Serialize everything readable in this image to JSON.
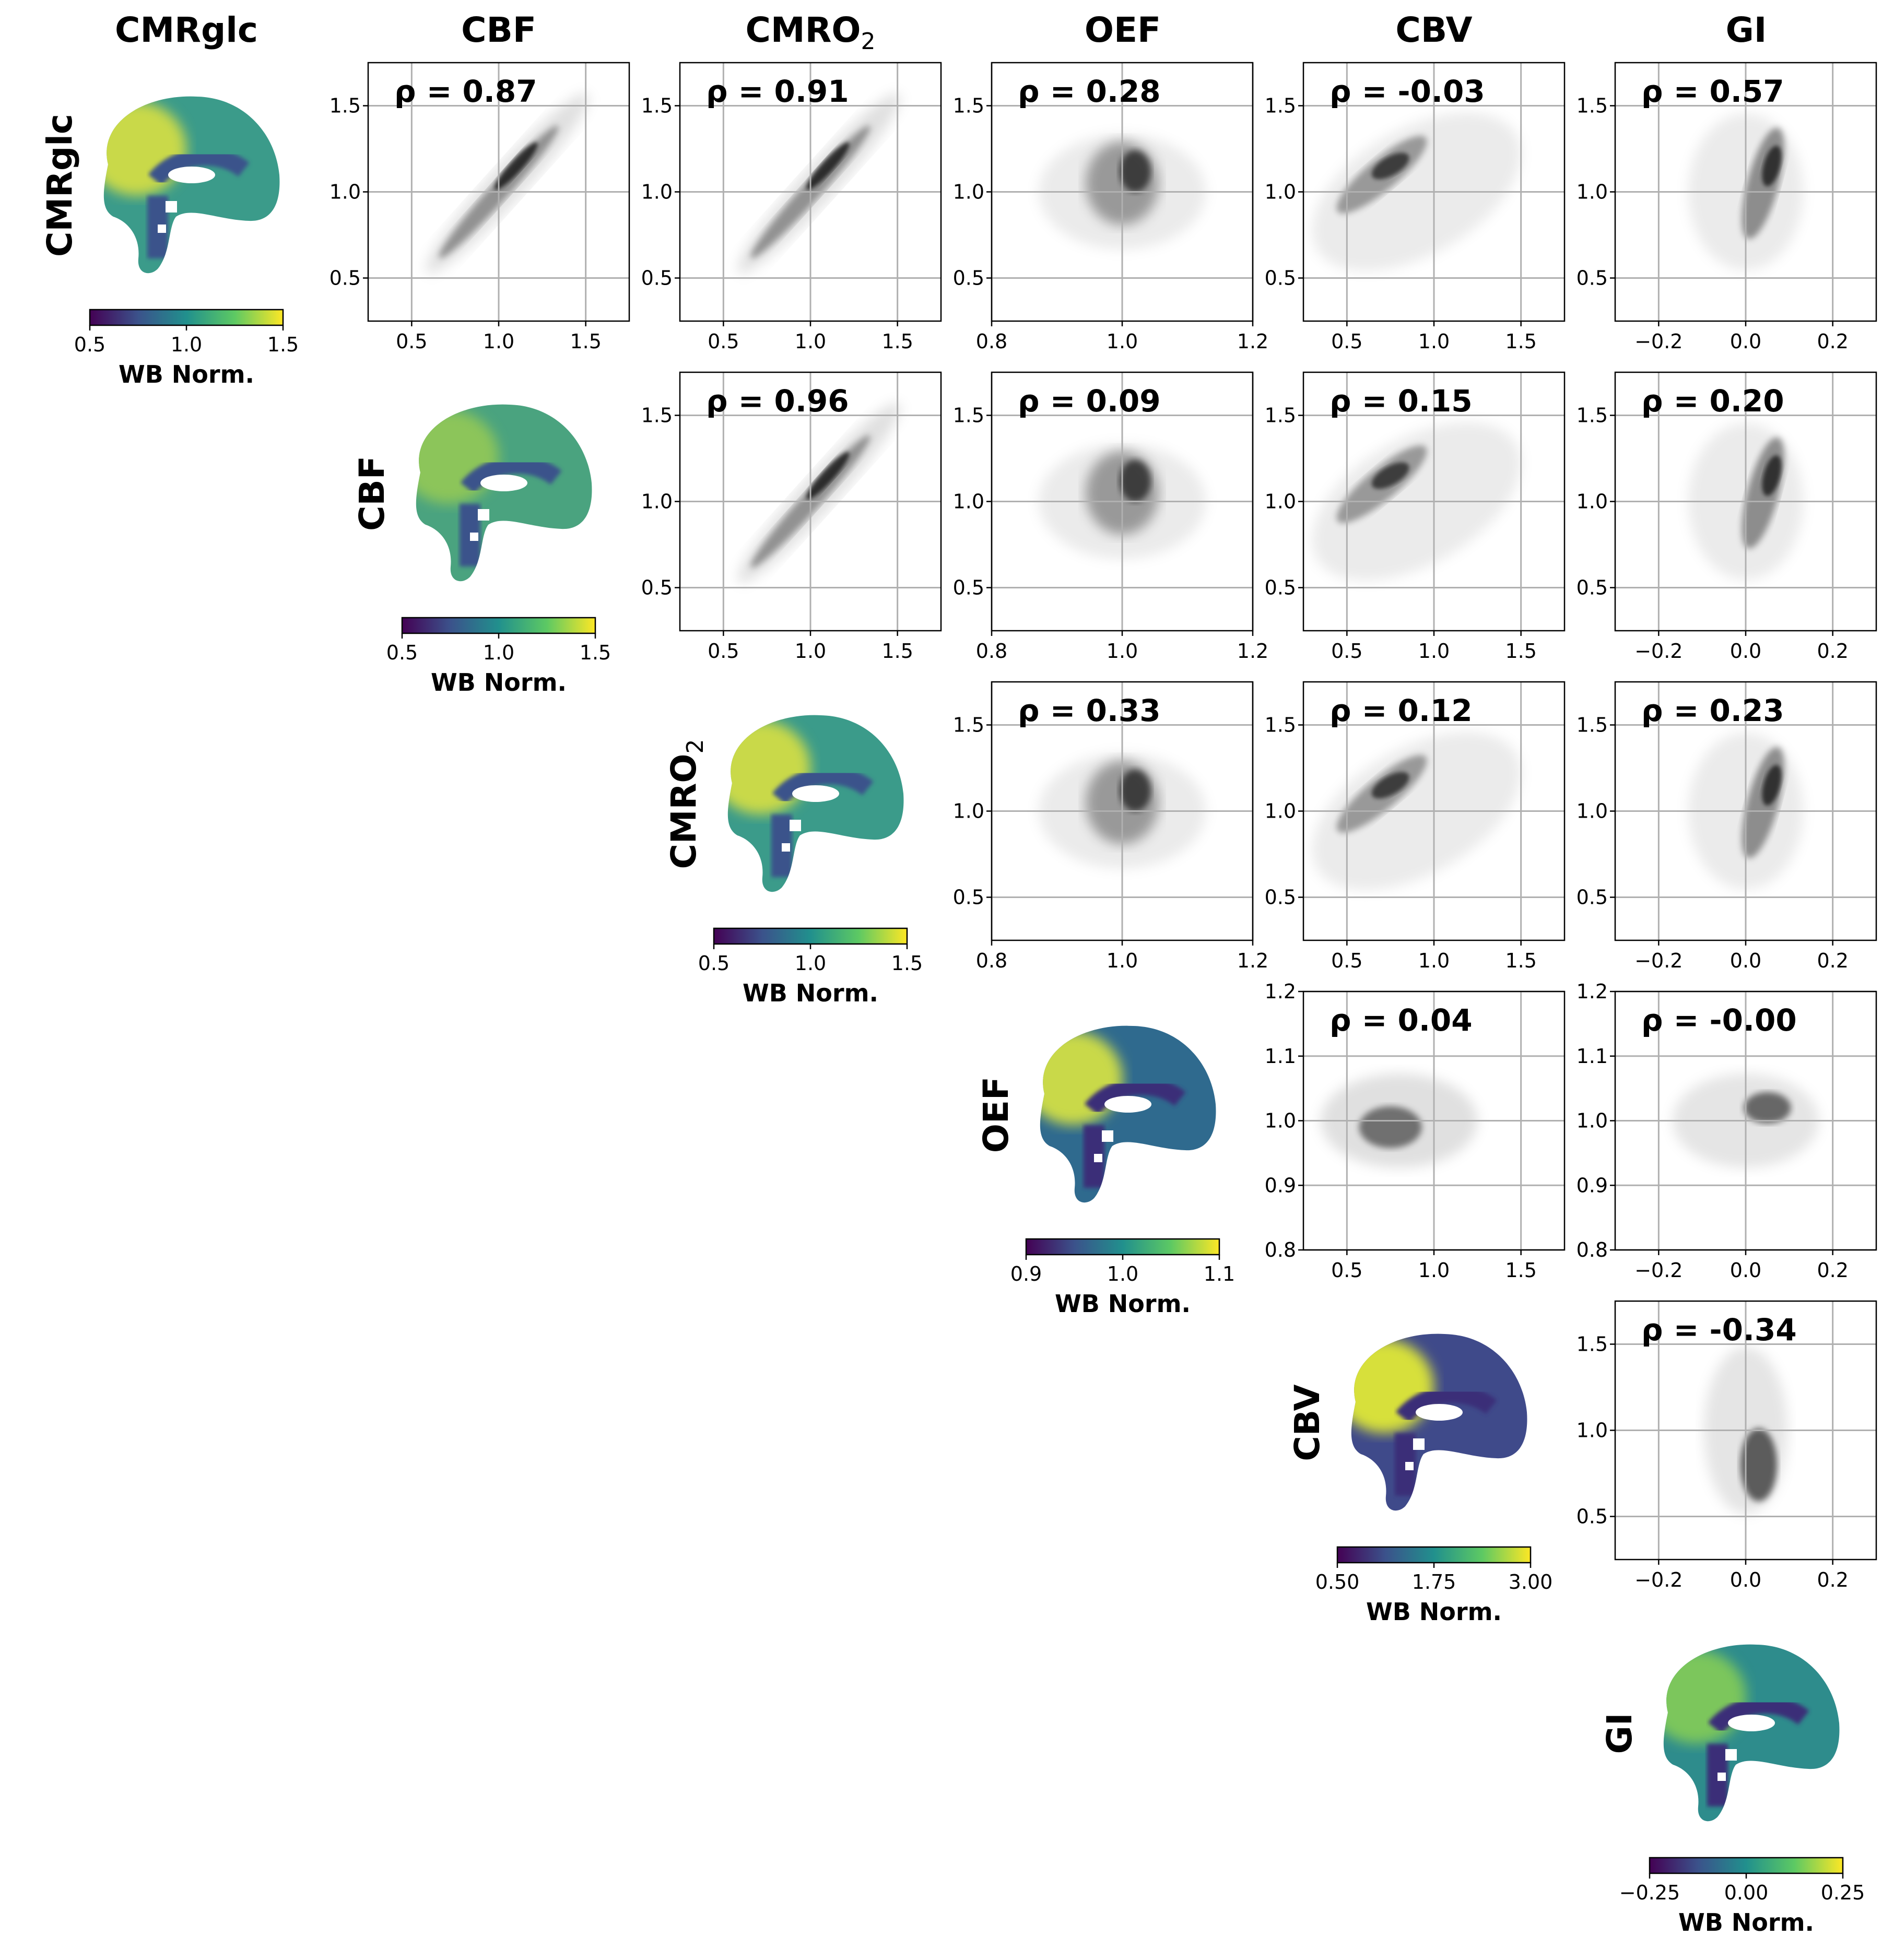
{
  "figure": {
    "variables": [
      {
        "key": "cmrglc",
        "title": "CMRglc",
        "title_sub": ""
      },
      {
        "key": "cbf",
        "title": "CBF",
        "title_sub": ""
      },
      {
        "key": "cmro2",
        "title": "CMRO",
        "title_sub": "2"
      },
      {
        "key": "oef",
        "title": "OEF",
        "title_sub": ""
      },
      {
        "key": "cbv",
        "title": "CBV",
        "title_sub": ""
      },
      {
        "key": "gi",
        "title": "GI",
        "title_sub": ""
      }
    ],
    "colorbar_label": "WB Norm.",
    "colors": {
      "viridis": [
        "#440154",
        "#3b528b",
        "#21908d",
        "#5dc963",
        "#fde725"
      ],
      "density": [
        "#ffffff",
        "#000000"
      ],
      "grid": "#b0b0b0"
    }
  },
  "colorbars": [
    {
      "variable": "cmrglc",
      "range": [
        0.5,
        1.5
      ],
      "ticks": [
        "0.5",
        "1.0",
        "1.5"
      ]
    },
    {
      "variable": "cbf",
      "range": [
        0.5,
        1.5
      ],
      "ticks": [
        "0.5",
        "1.0",
        "1.5"
      ]
    },
    {
      "variable": "cmro2",
      "range": [
        0.5,
        1.5
      ],
      "ticks": [
        "0.5",
        "1.0",
        "1.5"
      ]
    },
    {
      "variable": "oef",
      "range": [
        0.9,
        1.1
      ],
      "ticks": [
        "0.9",
        "1.0",
        "1.1"
      ]
    },
    {
      "variable": "cbv",
      "range": [
        0.5,
        3.0
      ],
      "ticks": [
        "0.50",
        "1.75",
        "3.00"
      ]
    },
    {
      "variable": "gi",
      "range": [
        -0.25,
        0.25
      ],
      "ticks": [
        "−0.25",
        "0.00",
        "0.25"
      ]
    }
  ],
  "chart_data": [
    {
      "type": "heatmap",
      "row": 0,
      "col": 1,
      "rho": "ρ = 0.87",
      "xlim": [
        0.25,
        1.75
      ],
      "ylim": [
        0.25,
        1.75
      ],
      "xticks": [
        0.5,
        1.0,
        1.5
      ],
      "yticks": [
        0.5,
        1.0,
        1.5
      ],
      "xticklabels": [
        "0.5",
        "1.0",
        "1.5"
      ],
      "yticklabels": [
        "0.5",
        "1.0",
        "1.5"
      ]
    },
    {
      "type": "heatmap",
      "row": 0,
      "col": 2,
      "rho": "ρ = 0.91",
      "xlim": [
        0.25,
        1.75
      ],
      "ylim": [
        0.25,
        1.75
      ],
      "xticks": [
        0.5,
        1.0,
        1.5
      ],
      "yticks": [
        0.5,
        1.0,
        1.5
      ],
      "xticklabels": [
        "0.5",
        "1.0",
        "1.5"
      ],
      "yticklabels": [
        "0.5",
        "1.0",
        "1.5"
      ]
    },
    {
      "type": "heatmap",
      "row": 0,
      "col": 3,
      "rho": "ρ = 0.28",
      "xlim": [
        0.8,
        1.2
      ],
      "ylim": [
        0.25,
        1.75
      ],
      "xticks": [
        0.8,
        1.0,
        1.2
      ],
      "yticks": [
        0.5,
        1.0,
        1.5
      ],
      "xticklabels": [
        "0.8",
        "1.0",
        "1.2"
      ],
      "yticklabels": [
        "0.5",
        "1.0",
        "1.5"
      ]
    },
    {
      "type": "heatmap",
      "row": 0,
      "col": 4,
      "rho": "ρ = -0.03",
      "xlim": [
        0.25,
        1.75
      ],
      "ylim": [
        0.25,
        1.75
      ],
      "xticks": [
        0.5,
        1.0,
        1.5
      ],
      "yticks": [
        0.5,
        1.0,
        1.5
      ],
      "xticklabels": [
        "0.5",
        "1.0",
        "1.5"
      ],
      "yticklabels": [
        "0.5",
        "1.0",
        "1.5"
      ]
    },
    {
      "type": "heatmap",
      "row": 0,
      "col": 5,
      "rho": "ρ = 0.57",
      "xlim": [
        -0.3,
        0.3
      ],
      "ylim": [
        0.25,
        1.75
      ],
      "xticks": [
        -0.2,
        0.0,
        0.2
      ],
      "yticks": [
        0.5,
        1.0,
        1.5
      ],
      "xticklabels": [
        "−0.2",
        "0.0",
        "0.2"
      ],
      "yticklabels": [
        "0.5",
        "1.0",
        "1.5"
      ]
    },
    {
      "type": "heatmap",
      "row": 1,
      "col": 2,
      "rho": "ρ = 0.96",
      "xlim": [
        0.25,
        1.75
      ],
      "ylim": [
        0.25,
        1.75
      ],
      "xticks": [
        0.5,
        1.0,
        1.5
      ],
      "yticks": [
        0.5,
        1.0,
        1.5
      ],
      "xticklabels": [
        "0.5",
        "1.0",
        "1.5"
      ],
      "yticklabels": [
        "0.5",
        "1.0",
        "1.5"
      ]
    },
    {
      "type": "heatmap",
      "row": 1,
      "col": 3,
      "rho": "ρ = 0.09",
      "xlim": [
        0.8,
        1.2
      ],
      "ylim": [
        0.25,
        1.75
      ],
      "xticks": [
        0.8,
        1.0,
        1.2
      ],
      "yticks": [
        0.5,
        1.0,
        1.5
      ],
      "xticklabels": [
        "0.8",
        "1.0",
        "1.2"
      ],
      "yticklabels": [
        "0.5",
        "1.0",
        "1.5"
      ]
    },
    {
      "type": "heatmap",
      "row": 1,
      "col": 4,
      "rho": "ρ = 0.15",
      "xlim": [
        0.25,
        1.75
      ],
      "ylim": [
        0.25,
        1.75
      ],
      "xticks": [
        0.5,
        1.0,
        1.5
      ],
      "yticks": [
        0.5,
        1.0,
        1.5
      ],
      "xticklabels": [
        "0.5",
        "1.0",
        "1.5"
      ],
      "yticklabels": [
        "0.5",
        "1.0",
        "1.5"
      ]
    },
    {
      "type": "heatmap",
      "row": 1,
      "col": 5,
      "rho": "ρ = 0.20",
      "xlim": [
        -0.3,
        0.3
      ],
      "ylim": [
        0.25,
        1.75
      ],
      "xticks": [
        -0.2,
        0.0,
        0.2
      ],
      "yticks": [
        0.5,
        1.0,
        1.5
      ],
      "xticklabels": [
        "−0.2",
        "0.0",
        "0.2"
      ],
      "yticklabels": [
        "0.5",
        "1.0",
        "1.5"
      ]
    },
    {
      "type": "heatmap",
      "row": 2,
      "col": 3,
      "rho": "ρ = 0.33",
      "xlim": [
        0.8,
        1.2
      ],
      "ylim": [
        0.25,
        1.75
      ],
      "xticks": [
        0.8,
        1.0,
        1.2
      ],
      "yticks": [
        0.5,
        1.0,
        1.5
      ],
      "xticklabels": [
        "0.8",
        "1.0",
        "1.2"
      ],
      "yticklabels": [
        "0.5",
        "1.0",
        "1.5"
      ]
    },
    {
      "type": "heatmap",
      "row": 2,
      "col": 4,
      "rho": "ρ = 0.12",
      "xlim": [
        0.25,
        1.75
      ],
      "ylim": [
        0.25,
        1.75
      ],
      "xticks": [
        0.5,
        1.0,
        1.5
      ],
      "yticks": [
        0.5,
        1.0,
        1.5
      ],
      "xticklabels": [
        "0.5",
        "1.0",
        "1.5"
      ],
      "yticklabels": [
        "0.5",
        "1.0",
        "1.5"
      ]
    },
    {
      "type": "heatmap",
      "row": 2,
      "col": 5,
      "rho": "ρ = 0.23",
      "xlim": [
        -0.3,
        0.3
      ],
      "ylim": [
        0.25,
        1.75
      ],
      "xticks": [
        -0.2,
        0.0,
        0.2
      ],
      "yticks": [
        0.5,
        1.0,
        1.5
      ],
      "xticklabels": [
        "−0.2",
        "0.0",
        "0.2"
      ],
      "yticklabels": [
        "0.5",
        "1.0",
        "1.5"
      ]
    },
    {
      "type": "heatmap",
      "row": 3,
      "col": 4,
      "rho": "ρ = 0.04",
      "xlim": [
        0.25,
        1.75
      ],
      "ylim": [
        0.8,
        1.2
      ],
      "xticks": [
        0.5,
        1.0,
        1.5
      ],
      "yticks": [
        0.8,
        0.9,
        1.0,
        1.1,
        1.2
      ],
      "xticklabels": [
        "0.5",
        "1.0",
        "1.5"
      ],
      "yticklabels": [
        "0.8",
        "0.9",
        "1.0",
        "1.1",
        "1.2"
      ]
    },
    {
      "type": "heatmap",
      "row": 3,
      "col": 5,
      "rho": "ρ = -0.00",
      "xlim": [
        -0.3,
        0.3
      ],
      "ylim": [
        0.8,
        1.2
      ],
      "xticks": [
        -0.2,
        0.0,
        0.2
      ],
      "yticks": [
        0.8,
        0.9,
        1.0,
        1.1,
        1.2
      ],
      "xticklabels": [
        "−0.2",
        "0.0",
        "0.2"
      ],
      "yticklabels": [
        "0.8",
        "0.9",
        "1.0",
        "1.1",
        "1.2"
      ]
    },
    {
      "type": "heatmap",
      "row": 4,
      "col": 5,
      "rho": "ρ = -0.34",
      "xlim": [
        -0.3,
        0.3
      ],
      "ylim": [
        0.25,
        1.75
      ],
      "xticks": [
        -0.2,
        0.0,
        0.2
      ],
      "yticks": [
        0.5,
        1.0,
        1.5
      ],
      "xticklabels": [
        "−0.2",
        "0.0",
        "0.2"
      ],
      "yticklabels": [
        "0.5",
        "1.0",
        "1.5"
      ]
    }
  ]
}
